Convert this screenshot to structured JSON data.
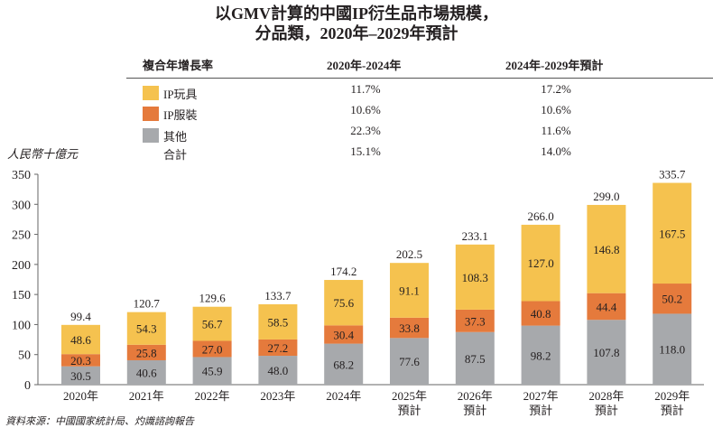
{
  "title_line1": "以GMV計算的中國IP衍生品市場規模，",
  "title_line2": "分品類，2020年–2029年預計",
  "cagr_table": {
    "header": "複合年增長率",
    "col1": "2020年-2024年",
    "col2": "2024年-2029年預計",
    "rows": [
      {
        "label": "IP玩具",
        "v1": "11.7%",
        "v2": "17.2%",
        "color": "#f5c24f"
      },
      {
        "label": "IP服裝",
        "v1": "10.6%",
        "v2": "10.6%",
        "color": "#e57a3c"
      },
      {
        "label": "其他",
        "v1": "22.3%",
        "v2": "11.6%",
        "color": "#a7a9ac"
      },
      {
        "label": "合計",
        "v1": "15.1%",
        "v2": "14.0%",
        "color": null
      }
    ]
  },
  "source": "資料來源：中國國家統計局、灼識諮詢報告",
  "chart_data": {
    "type": "bar",
    "stacked": true,
    "title": "以GMV計算的中國IP衍生品市場規模，分品類，2020年–2029年預計",
    "ylabel": "人民幣十億元",
    "xlabel": "",
    "ylim": [
      0,
      350
    ],
    "yticks": [
      "0",
      "50",
      "100",
      "150",
      "200",
      "250",
      "300",
      "350"
    ],
    "grid": false,
    "categories": [
      "2020年",
      "2021年",
      "2022年",
      "2023年",
      "2024年",
      "2025年\n預計",
      "2026年\n預計",
      "2027年\n預計",
      "2028年\n預計",
      "2029年\n預計"
    ],
    "category_line1": [
      "2020年",
      "2021年",
      "2022年",
      "2023年",
      "2024年",
      "2025年",
      "2026年",
      "2027年",
      "2028年",
      "2029年"
    ],
    "category_line2": [
      "",
      "",
      "",
      "",
      "",
      "預計",
      "預計",
      "預計",
      "預計",
      "預計"
    ],
    "series": [
      {
        "name": "其他",
        "color": "#a7a9ac",
        "values": [
          30.5,
          40.6,
          45.9,
          48.0,
          68.2,
          77.6,
          87.5,
          98.2,
          107.8,
          118.0
        ],
        "labels": [
          "30.5",
          "40.6",
          "45.9",
          "48.0",
          "68.2",
          "77.6",
          "87.5",
          "98.2",
          "107.8",
          "118.0"
        ]
      },
      {
        "name": "IP服裝",
        "color": "#e57a3c",
        "values": [
          20.3,
          25.8,
          27.0,
          27.2,
          30.4,
          33.8,
          37.3,
          40.8,
          44.4,
          50.2
        ],
        "labels": [
          "20.3",
          "25.8",
          "27.0",
          "27.2",
          "30.4",
          "33.8",
          "37.3",
          "40.8",
          "44.4",
          "50.2"
        ]
      },
      {
        "name": "IP玩具",
        "color": "#f5c24f",
        "values": [
          48.6,
          54.3,
          56.7,
          58.5,
          75.6,
          91.1,
          108.3,
          127.0,
          146.8,
          167.5
        ],
        "labels": [
          "48.6",
          "54.3",
          "56.7",
          "58.5",
          "75.6",
          "91.1",
          "108.3",
          "127.0",
          "146.8",
          "167.5"
        ]
      }
    ],
    "totals": [
      99.4,
      120.7,
      129.6,
      133.7,
      174.2,
      202.5,
      233.1,
      266.0,
      299.0,
      335.7
    ],
    "total_labels": [
      "99.4",
      "120.7",
      "129.6",
      "133.7",
      "174.2",
      "202.5",
      "233.1",
      "266.0",
      "299.0",
      "335.7"
    ]
  }
}
